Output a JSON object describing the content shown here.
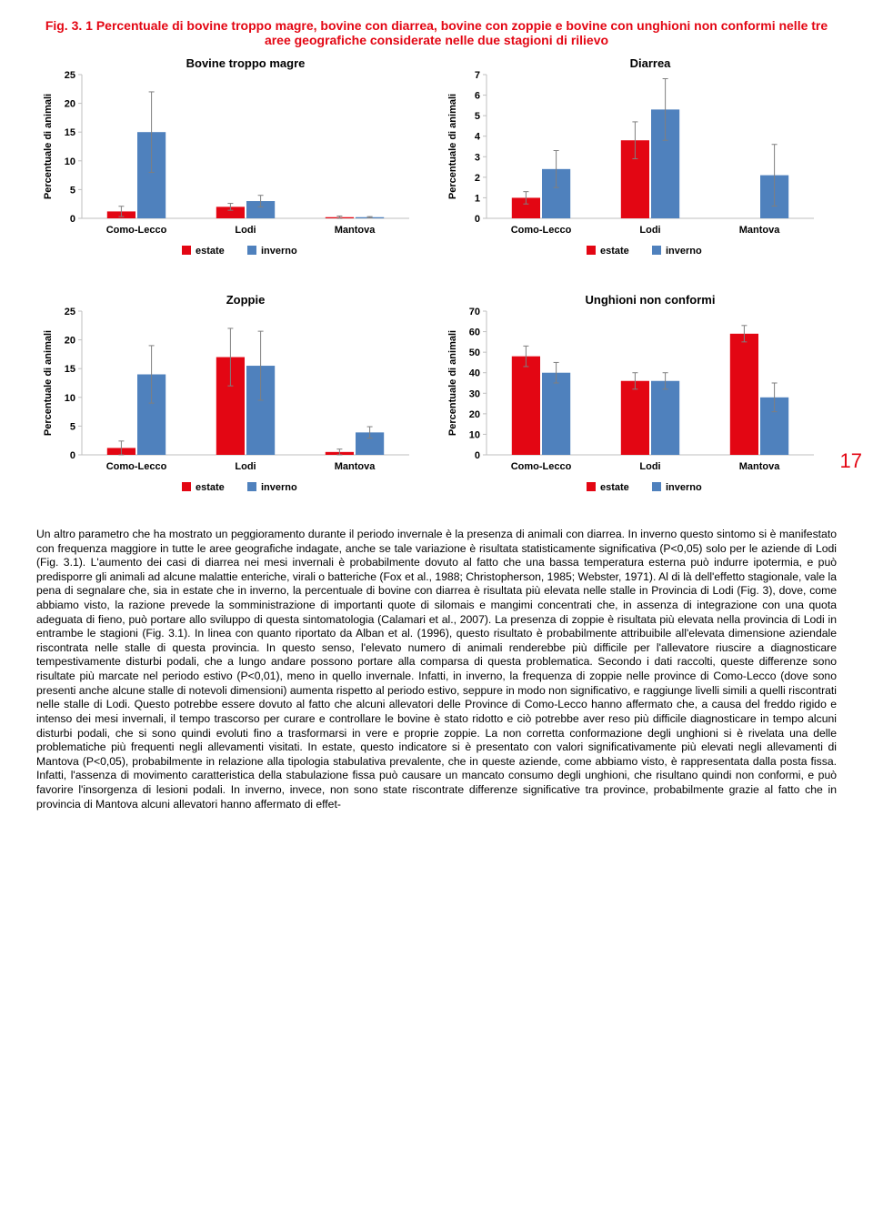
{
  "caption_prefix": "Fig. 3. 1",
  "caption_text": "Percentuale di bovine troppo magre, bovine con diarrea, bovine con zoppie e bovine con unghioni non conformi nelle tre aree geografiche considerate nelle due stagioni di rilievo",
  "page_number": "17",
  "colors": {
    "estate": "#e30613",
    "inverno": "#4f81bd",
    "axis": "#bfbfbf",
    "text": "#000000",
    "bg": "#ffffff",
    "errbar": "#7f7f7f"
  },
  "legend_labels": {
    "estate": "estate",
    "inverno": "inverno"
  },
  "axis_label": "Percentuale di animali",
  "categories": [
    "Como-Lecco",
    "Lodi",
    "Mantova"
  ],
  "charts": [
    {
      "title": "Bovine troppo magre",
      "ymax": 25,
      "ystep": 5,
      "series": {
        "estate": {
          "values": [
            1.2,
            2.0,
            0.2
          ],
          "err": [
            0.9,
            0.6,
            0.2
          ]
        },
        "inverno": {
          "values": [
            15.0,
            3.0,
            0.2
          ],
          "err": [
            7.0,
            1.0,
            0.1
          ]
        }
      }
    },
    {
      "title": "Diarrea",
      "ymax": 7,
      "ystep": 1,
      "series": {
        "estate": {
          "values": [
            1.0,
            3.8,
            0.0
          ],
          "err": [
            0.3,
            0.9,
            0.0
          ]
        },
        "inverno": {
          "values": [
            2.4,
            5.3,
            2.1
          ],
          "err": [
            0.9,
            1.5,
            1.5
          ]
        }
      }
    },
    {
      "title": "Zoppie",
      "ymax": 25,
      "ystep": 5,
      "series": {
        "estate": {
          "values": [
            1.2,
            17.0,
            0.5
          ],
          "err": [
            1.2,
            5.0,
            0.5
          ]
        },
        "inverno": {
          "values": [
            14.0,
            15.5,
            3.9
          ],
          "err": [
            5.0,
            6.0,
            1.0
          ]
        }
      }
    },
    {
      "title": "Unghioni non conformi",
      "ymax": 70,
      "ystep": 10,
      "series": {
        "estate": {
          "values": [
            48,
            36,
            59
          ],
          "err": [
            5,
            4,
            4
          ]
        },
        "inverno": {
          "values": [
            40,
            36,
            28
          ],
          "err": [
            5,
            4,
            7
          ]
        }
      }
    }
  ],
  "body_text": "Un altro parametro che ha mostrato un peggioramento durante il periodo invernale è la presenza di animali con diarrea. In inverno questo sintomo si è manifestato con frequenza maggiore in tutte le aree geografiche indagate, anche se tale variazione è risultata statisticamente significativa (P<0,05) solo per le aziende di Lodi (Fig. 3.1). L'aumento dei casi di diarrea nei mesi invernali è probabilmente dovuto al fatto che una bassa temperatura esterna può indurre ipotermia, e può predisporre gli animali ad alcune malattie enteriche, virali o batteriche (Fox et al., 1988; Christopherson, 1985; Webster, 1971). Al di là dell'effetto stagionale, vale la pena di segnalare che, sia in estate che in inverno, la percentuale di bovine con diarrea è risultata più elevata nelle stalle in Provincia di Lodi (Fig. 3), dove, come abbiamo visto, la razione prevede la somministrazione di importanti quote di silomais e mangimi concentrati che, in assenza di integrazione con una quota adeguata di fieno, può portare allo sviluppo di questa sintomatologia (Calamari et al., 2007).\nLa presenza di zoppie è risultata più elevata nella provincia di Lodi in entrambe le stagioni (Fig. 3.1). In linea con quanto riportato da Alban et al. (1996), questo risultato è probabilmente attribuibile all'elevata dimensione aziendale riscontrata nelle stalle di questa provincia. In questo senso, l'elevato numero di animali renderebbe più difficile per l'allevatore riuscire a diagnosticare tempestivamente disturbi podali, che a lungo andare possono portare alla comparsa di questa problematica. Secondo i dati raccolti, queste differenze sono risultate più marcate nel periodo estivo (P<0,01), meno in quello invernale. Infatti, in inverno, la frequenza di zoppie nelle province di Como-Lecco (dove sono presenti anche alcune stalle di notevoli dimensioni) aumenta rispetto al periodo estivo, seppure in modo non significativo, e raggiunge livelli simili a quelli riscontrati nelle stalle di Lodi. Questo potrebbe essere dovuto al fatto che alcuni allevatori delle Province di Como-Lecco hanno affermato che, a causa del freddo rigido e intenso dei mesi invernali, il tempo trascorso per curare e controllare le bovine è stato ridotto e ciò potrebbe aver reso più difficile diagnosticare in tempo alcuni disturbi podali, che si sono quindi evoluti fino a trasformarsi in vere e proprie zoppie.\nLa non corretta conformazione degli unghioni si è rivelata una delle problematiche più frequenti negli allevamenti visitati. In estate, questo indicatore si è presentato con valori significativamente più elevati negli allevamenti di Mantova (P<0,05), probabilmente in relazione alla tipologia stabulativa prevalente, che in queste aziende, come abbiamo visto, è rappresentata dalla posta fissa. Infatti, l'assenza di movimento caratteristica della stabulazione fissa può causare un mancato consumo degli unghioni, che risultano quindi non conformi, e può favorire l'insorgenza di lesioni podali. In inverno, invece, non sono state riscontrate differenze significative tra province, probabilmente grazie al fatto che in provincia di Mantova alcuni allevatori hanno affermato di effet-"
}
